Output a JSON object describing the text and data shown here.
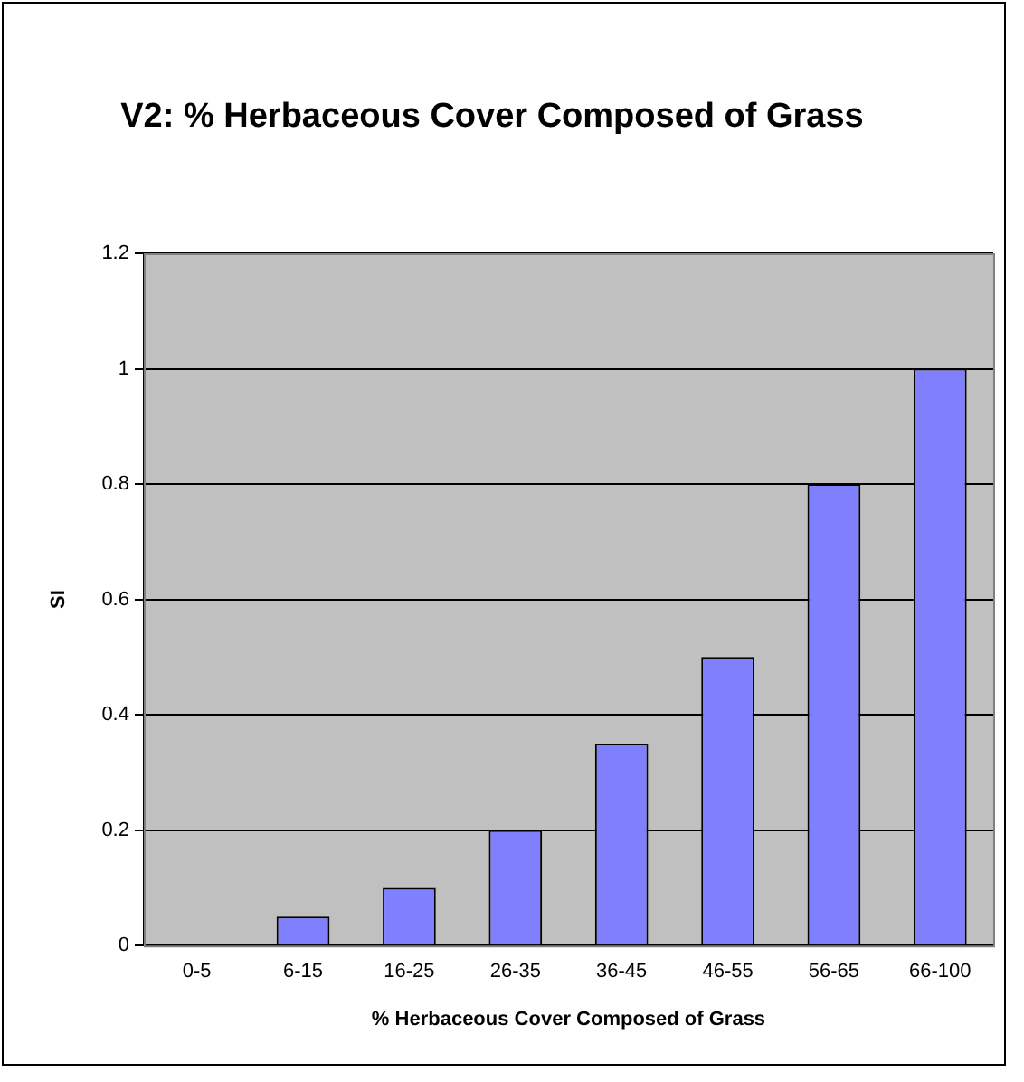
{
  "chart_data": {
    "type": "bar",
    "title": "V2: % Herbaceous Cover Composed of Grass",
    "xlabel": "% Herbaceous Cover Composed of Grass",
    "ylabel": "SI",
    "categories": [
      "0-5",
      "6-15",
      "16-25",
      "26-35",
      "36-45",
      "46-55",
      "56-65",
      "66-100"
    ],
    "values": [
      0,
      0.05,
      0.1,
      0.2,
      0.35,
      0.5,
      0.8,
      1.0
    ],
    "color": "#8080ff",
    "ylim": [
      0,
      1.2
    ],
    "yticks": [
      0,
      0.2,
      0.4,
      0.6,
      0.8,
      1,
      1.2
    ],
    "grid": "y",
    "legend": false
  }
}
